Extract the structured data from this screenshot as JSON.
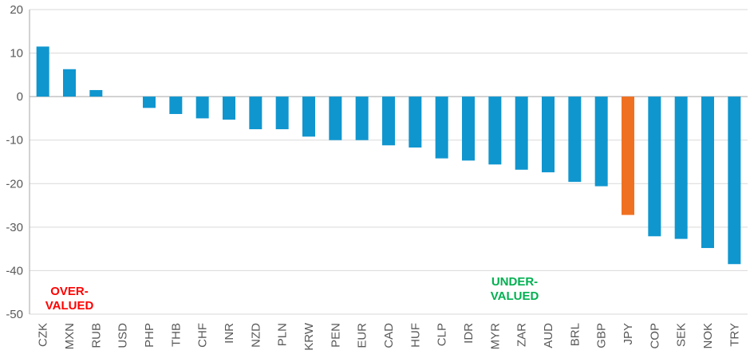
{
  "chart_data": {
    "type": "bar",
    "title": "",
    "xlabel": "",
    "ylabel": "",
    "ylim": [
      -50,
      20
    ],
    "yticks": [
      20,
      10,
      0,
      -10,
      -20,
      -30,
      -40,
      -50
    ],
    "grid": true,
    "categories": [
      "CZK",
      "MXN",
      "RUB",
      "USD",
      "PHP",
      "THB",
      "CHF",
      "INR",
      "NZD",
      "PLN",
      "KRW",
      "PEN",
      "EUR",
      "CAD",
      "HUF",
      "CLP",
      "IDR",
      "MYR",
      "ZAR",
      "AUD",
      "BRL",
      "GBP",
      "JPY",
      "COP",
      "SEK",
      "NOK",
      "TRY"
    ],
    "values": [
      11.5,
      6.3,
      1.5,
      0,
      -2.6,
      -4.0,
      -5.0,
      -5.3,
      -7.5,
      -7.5,
      -9.2,
      -10.0,
      -10.0,
      -11.2,
      -11.7,
      -14.2,
      -14.7,
      -15.6,
      -16.8,
      -17.4,
      -19.6,
      -20.6,
      -27.2,
      -32.1,
      -32.7,
      -34.8,
      -38.5
    ],
    "colors": {
      "default": "#0f96cf",
      "highlight": "#f07021"
    },
    "highlight_category": "JPY",
    "annotations": [
      {
        "id": "overvalued",
        "lines": [
          "OVER-",
          "VALUED"
        ],
        "color": "#ff0000"
      },
      {
        "id": "undervalued",
        "lines": [
          "UNDER-",
          "VALUED"
        ],
        "color": "#00b050"
      }
    ]
  }
}
